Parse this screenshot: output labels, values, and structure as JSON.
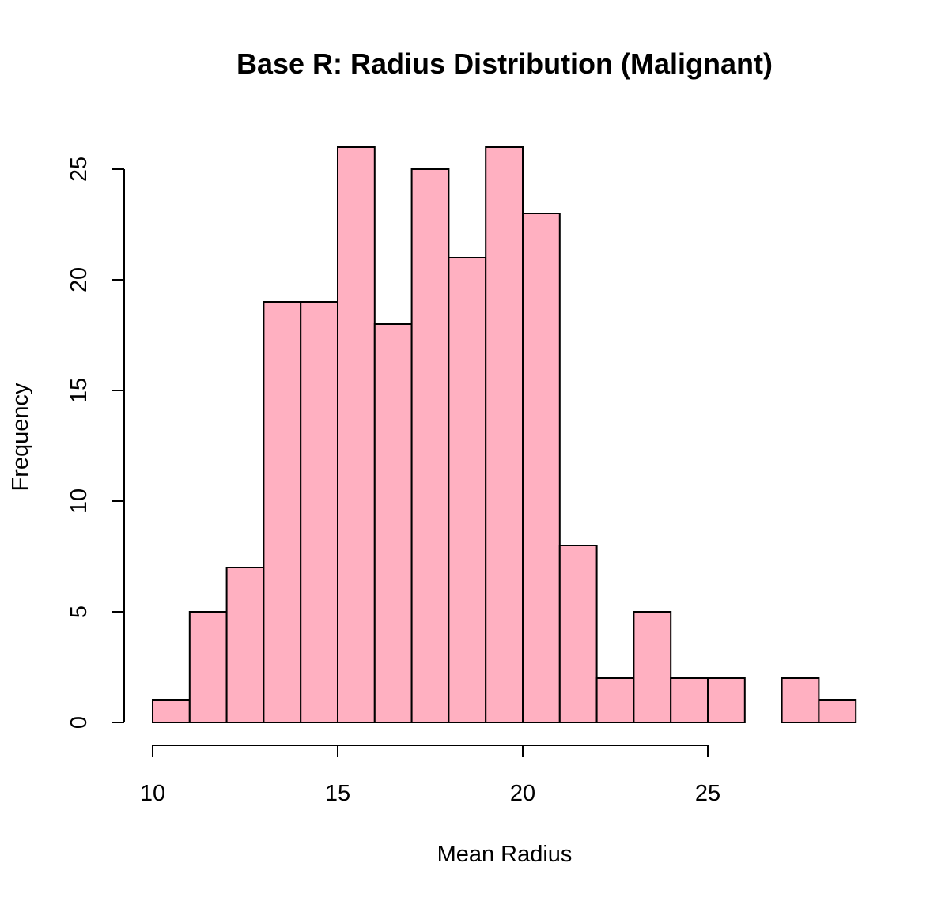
{
  "chart_data": {
    "type": "bar",
    "title": "Base R: Radius Distribution (Malignant)",
    "xlabel": "Mean Radius",
    "ylabel": "Frequency",
    "bin_edges": [
      10,
      11,
      12,
      13,
      14,
      15,
      16,
      17,
      18,
      19,
      20,
      21,
      22,
      23,
      24,
      25,
      26,
      27,
      28,
      29
    ],
    "values": [
      1,
      5,
      7,
      19,
      19,
      26,
      18,
      25,
      21,
      26,
      23,
      8,
      2,
      5,
      2,
      2,
      0,
      2,
      1
    ],
    "x_ticks": [
      "10",
      "15",
      "20",
      "25"
    ],
    "y_ticks": [
      "0",
      "5",
      "10",
      "15",
      "20",
      "25"
    ],
    "xlim": [
      10,
      25
    ],
    "ylim": [
      0,
      25
    ],
    "bar_color": "#FFB0C1",
    "grid": false,
    "legend": "none"
  }
}
